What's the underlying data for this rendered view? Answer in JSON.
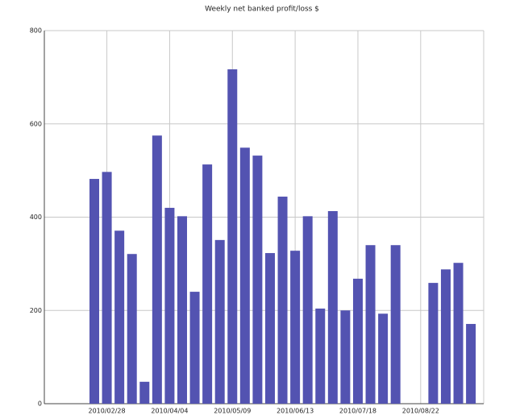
{
  "chart_data": {
    "type": "bar",
    "title": "Weekly net banked profit/loss $",
    "categories": [
      null,
      "2010/02/28",
      null,
      null,
      null,
      null,
      "2010/04/04",
      null,
      null,
      null,
      null,
      "2010/05/09",
      null,
      null,
      null,
      null,
      "2010/06/13",
      null,
      null,
      null,
      null,
      "2010/07/18",
      null,
      null,
      null,
      null,
      "2010/08/22",
      null,
      null,
      null,
      null
    ],
    "values": [
      482,
      497,
      371,
      321,
      47,
      575,
      420,
      402,
      240,
      513,
      351,
      717,
      549,
      532,
      323,
      444,
      328,
      402,
      204,
      413,
      200,
      268,
      340,
      193,
      340,
      null,
      null,
      259,
      288,
      302,
      171
    ],
    "color": "#5353b1",
    "ylim": [
      0,
      800
    ],
    "yticks": [
      0,
      200,
      400,
      600,
      800
    ],
    "grid": true
  }
}
